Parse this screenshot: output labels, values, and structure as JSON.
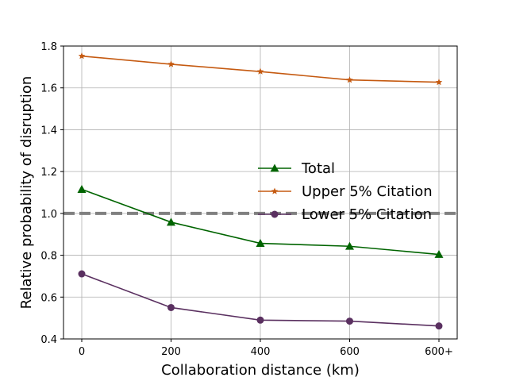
{
  "chart_data": {
    "type": "line",
    "xlabel": "Collaboration distance (km)",
    "ylabel": "Relative probability of disruption",
    "categories": [
      "0",
      "200",
      "400",
      "600",
      "600+"
    ],
    "ylim": [
      0.4,
      1.8
    ],
    "yticks": [
      "0.4",
      "0.6",
      "0.8",
      "1.0",
      "1.2",
      "1.4",
      "1.6",
      "1.8"
    ],
    "grid": true,
    "legend_position": "center-right",
    "reference_line": {
      "y": 1.0,
      "color": "#808080",
      "style": "dashed"
    },
    "series": [
      {
        "name": "Total",
        "color": "#006400",
        "marker": "triangle",
        "values": [
          1.115,
          0.958,
          0.857,
          0.843,
          0.804
        ]
      },
      {
        "name": "Upper 5% Citation",
        "color": "#c55a11",
        "marker": "star",
        "values": [
          1.752,
          1.713,
          1.678,
          1.638,
          1.627
        ]
      },
      {
        "name": "Lower 5% Citation",
        "color": "#5a3060",
        "marker": "circle",
        "values": [
          0.711,
          0.55,
          0.49,
          0.485,
          0.462
        ]
      }
    ]
  }
}
